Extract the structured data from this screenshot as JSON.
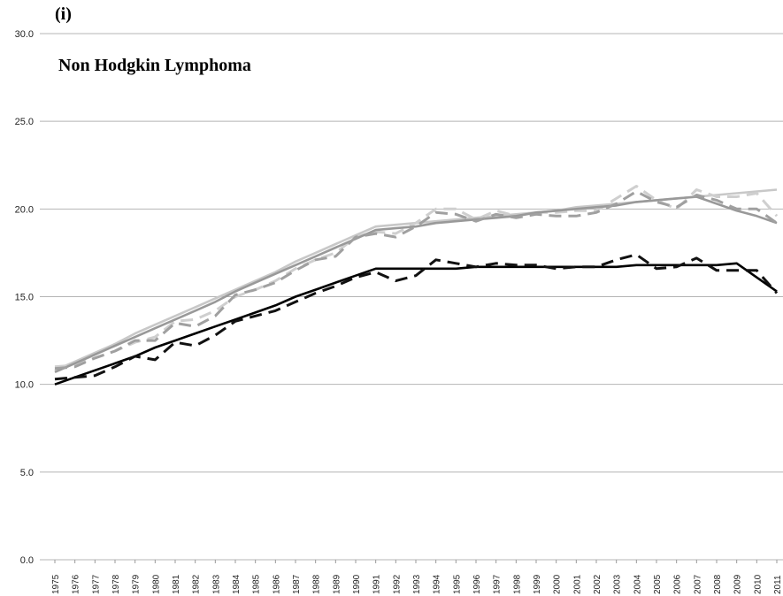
{
  "chart_data": {
    "type": "line",
    "panel_label": "(i)",
    "title": "Non Hodgkin Lymphoma",
    "categories": [
      "1975",
      "1976",
      "1977",
      "1978",
      "1979",
      "1980",
      "1981",
      "1982",
      "1983",
      "1984",
      "1985",
      "1986",
      "1987",
      "1988",
      "1989",
      "1990",
      "1991",
      "1992",
      "1993",
      "1994",
      "1995",
      "1996",
      "1997",
      "1998",
      "1999",
      "2000",
      "2001",
      "2002",
      "2003",
      "2004",
      "2005",
      "2006",
      "2007",
      "2008",
      "2009",
      "2010",
      "2011"
    ],
    "series": [
      {
        "color": "#c8c8c8",
        "dash": false,
        "values": [
          10.8,
          11.3,
          11.8,
          12.3,
          12.9,
          13.4,
          13.9,
          14.4,
          14.9,
          15.4,
          15.9,
          16.4,
          17.0,
          17.5,
          18.0,
          18.5,
          19.0,
          19.1,
          19.2,
          19.3,
          19.4,
          19.5,
          19.6,
          19.7,
          19.8,
          19.9,
          20.1,
          20.2,
          20.3,
          20.4,
          20.5,
          20.6,
          20.7,
          20.8,
          20.9,
          21.0,
          21.1
        ]
      },
      {
        "color": "#cfcfcf",
        "dash": true,
        "values": [
          11.0,
          11.1,
          11.5,
          11.9,
          12.4,
          12.7,
          13.6,
          13.7,
          14.2,
          15.0,
          15.4,
          15.9,
          16.6,
          17.1,
          17.5,
          18.4,
          18.7,
          18.6,
          19.2,
          20.0,
          20.0,
          19.4,
          19.9,
          19.6,
          19.8,
          19.8,
          19.9,
          19.9,
          20.6,
          21.3,
          20.5,
          20.0,
          21.1,
          20.7,
          20.7,
          20.9,
          19.6
        ]
      },
      {
        "color": "#999999",
        "dash": false,
        "values": [
          10.7,
          11.2,
          11.7,
          12.2,
          12.7,
          13.2,
          13.7,
          14.2,
          14.7,
          15.3,
          15.8,
          16.3,
          16.8,
          17.3,
          17.8,
          18.3,
          18.8,
          18.9,
          19.0,
          19.2,
          19.3,
          19.4,
          19.5,
          19.6,
          19.8,
          19.9,
          20.0,
          20.1,
          20.2,
          20.4,
          20.5,
          20.6,
          20.7,
          20.3,
          19.9,
          19.6,
          19.2
        ]
      },
      {
        "color": "#a0a0a0",
        "dash": true,
        "values": [
          10.9,
          11.0,
          11.5,
          11.9,
          12.5,
          12.5,
          13.5,
          13.3,
          13.9,
          15.1,
          15.4,
          15.8,
          16.5,
          17.1,
          17.3,
          18.4,
          18.6,
          18.4,
          19.0,
          19.8,
          19.7,
          19.3,
          19.7,
          19.5,
          19.7,
          19.6,
          19.6,
          19.8,
          20.3,
          21.0,
          20.4,
          20.1,
          20.8,
          20.5,
          20.0,
          20.0,
          19.2
        ]
      },
      {
        "color": "#000000",
        "dash": false,
        "values": [
          10.0,
          10.4,
          10.8,
          11.2,
          11.6,
          12.1,
          12.5,
          12.9,
          13.3,
          13.7,
          14.1,
          14.5,
          15.0,
          15.4,
          15.8,
          16.2,
          16.6,
          16.6,
          16.6,
          16.6,
          16.6,
          16.7,
          16.7,
          16.7,
          16.7,
          16.7,
          16.7,
          16.7,
          16.7,
          16.8,
          16.8,
          16.8,
          16.8,
          16.8,
          16.9,
          16.1,
          15.3
        ]
      },
      {
        "color": "#111111",
        "dash": true,
        "values": [
          10.3,
          10.4,
          10.5,
          11.0,
          11.6,
          11.4,
          12.4,
          12.2,
          12.8,
          13.6,
          13.9,
          14.2,
          14.7,
          15.2,
          15.6,
          16.1,
          16.4,
          15.9,
          16.2,
          17.1,
          16.9,
          16.7,
          16.9,
          16.8,
          16.8,
          16.6,
          16.7,
          16.7,
          17.1,
          17.4,
          16.6,
          16.7,
          17.2,
          16.5,
          16.5,
          16.5,
          15.2
        ]
      }
    ],
    "ylim": [
      0,
      30
    ],
    "yticks": [
      {
        "value": 0,
        "label": "0.0"
      },
      {
        "value": 5,
        "label": "5.0"
      },
      {
        "value": 10,
        "label": "10.0"
      },
      {
        "value": 15,
        "label": "15.0"
      },
      {
        "value": 20,
        "label": "20.0"
      },
      {
        "value": 25,
        "label": "25.0"
      },
      {
        "value": 30,
        "label": "30.0"
      }
    ],
    "grid": true
  }
}
